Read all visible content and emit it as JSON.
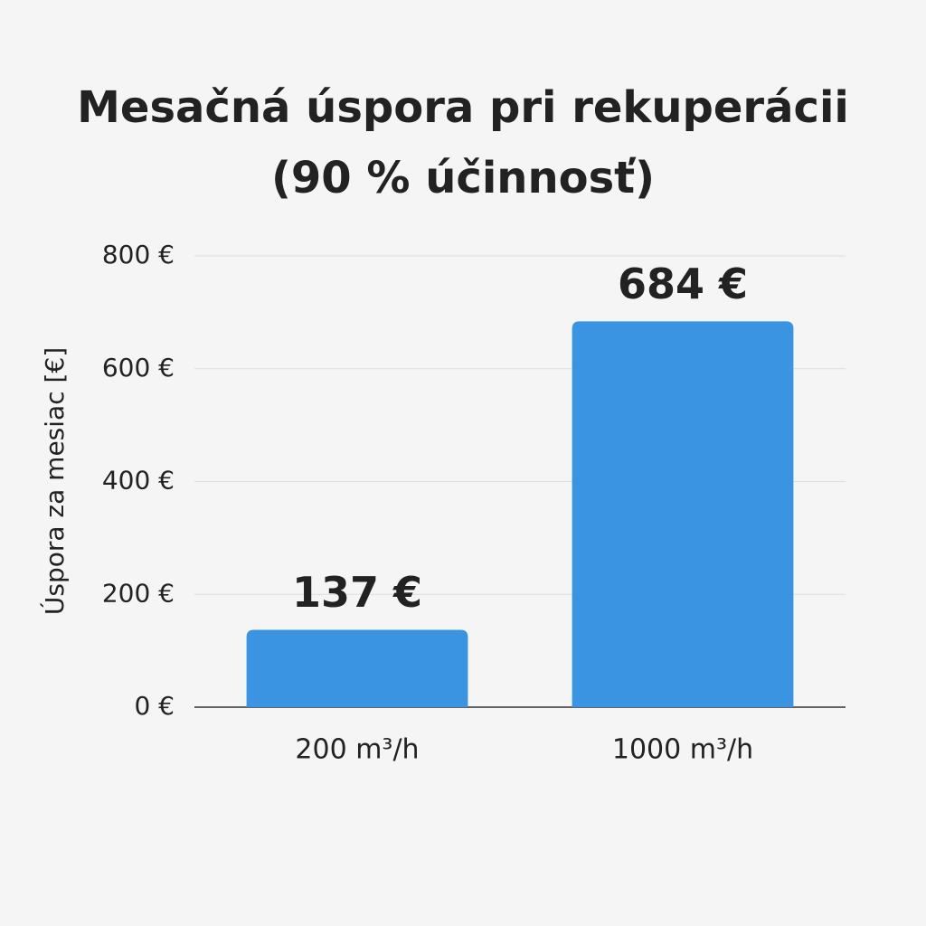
{
  "chart_data": {
    "type": "bar",
    "title": "Mesačná úspora pri rekuperácii (90 % účinnosť)",
    "y_label": "Úspora za mesiac [€]",
    "categories": [
      "200 m³/h",
      "1000 m³/h"
    ],
    "values": [
      137,
      684
    ],
    "value_labels": [
      "137 €",
      "684 €"
    ],
    "color": "#3b94e1",
    "ylim": [
      0,
      800
    ],
    "yticks": [
      {
        "value": 0,
        "label": "0 €"
      },
      {
        "value": 200,
        "label": "200 €"
      },
      {
        "value": 400,
        "label": "400 €"
      },
      {
        "value": 600,
        "label": "600 €"
      },
      {
        "value": 800,
        "label": "800 €"
      }
    ],
    "grid": true
  }
}
